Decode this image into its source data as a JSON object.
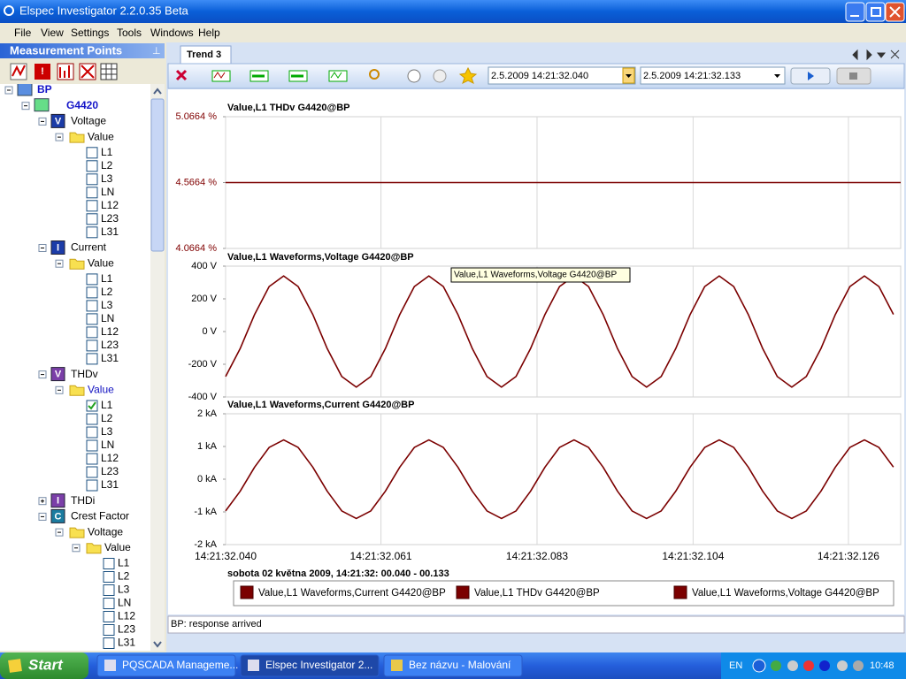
{
  "window": {
    "title": "Elspec Investigator 2.2.0.35 Beta"
  },
  "menu": [
    "File",
    "View",
    "Settings",
    "Tools",
    "Windows",
    "Help"
  ],
  "left_panel": {
    "title": "Measurement Points",
    "tree": [
      {
        "label": "BP",
        "depth": 0,
        "kind": "server",
        "expanded": true
      },
      {
        "label": "G4420",
        "depth": 1,
        "kind": "device",
        "expanded": true
      },
      {
        "label": "Voltage",
        "depth": 2,
        "kind": "measure",
        "icon": "V",
        "icon_color": "#1c3ca8",
        "expanded": true
      },
      {
        "label": "Value",
        "depth": 3,
        "kind": "folder",
        "expanded": true
      },
      {
        "label": "L1",
        "depth": 4,
        "kind": "channel",
        "checked": false
      },
      {
        "label": "L2",
        "depth": 4,
        "kind": "channel",
        "checked": false
      },
      {
        "label": "L3",
        "depth": 4,
        "kind": "channel",
        "checked": false
      },
      {
        "label": "LN",
        "depth": 4,
        "kind": "channel",
        "checked": false
      },
      {
        "label": "L12",
        "depth": 4,
        "kind": "channel",
        "checked": false
      },
      {
        "label": "L23",
        "depth": 4,
        "kind": "channel",
        "checked": false
      },
      {
        "label": "L31",
        "depth": 4,
        "kind": "channel",
        "checked": false
      },
      {
        "label": "Current",
        "depth": 2,
        "kind": "measure",
        "icon": "I",
        "icon_color": "#1c3ca8",
        "expanded": true
      },
      {
        "label": "Value",
        "depth": 3,
        "kind": "folder",
        "expanded": true
      },
      {
        "label": "L1",
        "depth": 4,
        "kind": "channel",
        "checked": false
      },
      {
        "label": "L2",
        "depth": 4,
        "kind": "channel",
        "checked": false
      },
      {
        "label": "L3",
        "depth": 4,
        "kind": "channel",
        "checked": false
      },
      {
        "label": "LN",
        "depth": 4,
        "kind": "channel",
        "checked": false
      },
      {
        "label": "L12",
        "depth": 4,
        "kind": "channel",
        "checked": false
      },
      {
        "label": "L23",
        "depth": 4,
        "kind": "channel",
        "checked": false
      },
      {
        "label": "L31",
        "depth": 4,
        "kind": "channel",
        "checked": false
      },
      {
        "label": "THDv",
        "depth": 2,
        "kind": "measure",
        "icon": "V",
        "icon_color": "#7b3fa8",
        "expanded": true
      },
      {
        "label": "Value",
        "depth": 3,
        "kind": "folder",
        "expanded": true,
        "selected": true
      },
      {
        "label": "L1",
        "depth": 4,
        "kind": "channel",
        "checked": true
      },
      {
        "label": "L2",
        "depth": 4,
        "kind": "channel",
        "checked": false
      },
      {
        "label": "L3",
        "depth": 4,
        "kind": "channel",
        "checked": false
      },
      {
        "label": "LN",
        "depth": 4,
        "kind": "channel",
        "checked": false
      },
      {
        "label": "L12",
        "depth": 4,
        "kind": "channel",
        "checked": false
      },
      {
        "label": "L23",
        "depth": 4,
        "kind": "channel",
        "checked": false
      },
      {
        "label": "L31",
        "depth": 4,
        "kind": "channel",
        "checked": false
      },
      {
        "label": "THDi",
        "depth": 2,
        "kind": "measure",
        "icon": "I",
        "icon_color": "#7b3fa8",
        "expanded": false
      },
      {
        "label": "Crest Factor",
        "depth": 2,
        "kind": "measure",
        "icon": "C",
        "icon_color": "#1b7ca0",
        "expanded": true
      },
      {
        "label": "Voltage",
        "depth": 3,
        "kind": "folder",
        "expanded": true
      },
      {
        "label": "Value",
        "depth": 4,
        "kind": "folder",
        "expanded": true
      },
      {
        "label": "L1",
        "depth": 5,
        "kind": "channel",
        "checked": false
      },
      {
        "label": "L2",
        "depth": 5,
        "kind": "channel",
        "checked": false
      },
      {
        "label": "L3",
        "depth": 5,
        "kind": "channel",
        "checked": false
      },
      {
        "label": "LN",
        "depth": 5,
        "kind": "channel",
        "checked": false
      },
      {
        "label": "L12",
        "depth": 5,
        "kind": "channel",
        "checked": false
      },
      {
        "label": "L23",
        "depth": 5,
        "kind": "channel",
        "checked": false
      },
      {
        "label": "L31",
        "depth": 5,
        "kind": "channel",
        "checked": false
      }
    ]
  },
  "tab": "Trend 3",
  "toolbar": {
    "start": "2.5.2009 14:21:32.040",
    "end": "2.5.2009 14:21:32.133"
  },
  "chart_data": [
    {
      "type": "line",
      "title": "Value,L1 THDv G4420@BP",
      "grid": true,
      "xlim": [
        32.04,
        32.133
      ],
      "xticks": [
        32.04,
        32.0614,
        32.0829,
        32.1044,
        32.1258
      ],
      "ylim": [
        4.0664,
        5.0664
      ],
      "yticks": [
        {
          "value": 5.0664,
          "label": "5.0664 %"
        },
        {
          "value": 4.5664,
          "label": "4.5664 %"
        },
        {
          "value": 4.0664,
          "label": "4.0664 %"
        }
      ],
      "x": [
        32.04,
        32.133
      ],
      "series": [
        {
          "name": "Value,L1 THDv G4420@BP",
          "color": "#7b0000",
          "values": [
            4.5664,
            4.5664
          ]
        }
      ]
    },
    {
      "type": "line",
      "title": "Value,L1 Waveforms,Voltage G4420@BP",
      "grid": true,
      "xlim": [
        32.04,
        32.133
      ],
      "xticks": [
        32.04,
        32.0614,
        32.0829,
        32.1044,
        32.1258
      ],
      "ylim": [
        -400,
        400
      ],
      "yticks": [
        {
          "value": 400,
          "label": "400 V"
        },
        {
          "value": 200,
          "label": "200 V"
        },
        {
          "value": 0,
          "label": "0 V"
        },
        {
          "value": -200,
          "label": "-200 V"
        },
        {
          "value": -400,
          "label": "-400 V"
        }
      ],
      "x": [
        32.04,
        32.042,
        32.044,
        32.046,
        32.048,
        32.05,
        32.052,
        32.054,
        32.056,
        32.058,
        32.06,
        32.062,
        32.064,
        32.066,
        32.068,
        32.07,
        32.072,
        32.074,
        32.076,
        32.078,
        32.08,
        32.082,
        32.084,
        32.086,
        32.088,
        32.09,
        32.092,
        32.094,
        32.096,
        32.098,
        32.1,
        32.102,
        32.104,
        32.106,
        32.108,
        32.11,
        32.112,
        32.114,
        32.116,
        32.118,
        32.12,
        32.122,
        32.124,
        32.126,
        32.128,
        32.13,
        32.132
      ],
      "series": [
        {
          "name": "Value,L1 Waveforms,Voltage G4420@BP",
          "color": "#7b0000",
          "values": [
            -275,
            -105,
            105,
            275,
            340,
            275,
            105,
            -105,
            -275,
            -340,
            -275,
            -105,
            105,
            275,
            340,
            275,
            105,
            -105,
            -275,
            -340,
            -275,
            -105,
            105,
            275,
            340,
            275,
            105,
            -105,
            -275,
            -340,
            -275,
            -105,
            105,
            275,
            340,
            275,
            105,
            -105,
            -275,
            -340,
            -275,
            -105,
            105,
            275,
            340,
            275,
            105
          ]
        }
      ]
    },
    {
      "type": "line",
      "title": "Value,L1 Waveforms,Current G4420@BP",
      "grid": true,
      "xlim": [
        32.04,
        32.133
      ],
      "xticks": [
        {
          "value": 32.04,
          "label": "14:21:32.040"
        },
        {
          "value": 32.0614,
          "label": "14:21:32.061"
        },
        {
          "value": 32.0829,
          "label": "14:21:32.083"
        },
        {
          "value": 32.1044,
          "label": "14:21:32.104"
        },
        {
          "value": 32.1258,
          "label": "14:21:32.126"
        }
      ],
      "ylim": [
        -2,
        2
      ],
      "yticks": [
        {
          "value": 2,
          "label": "2 kA"
        },
        {
          "value": 1,
          "label": "1 kA"
        },
        {
          "value": 0,
          "label": "0 kA"
        },
        {
          "value": -1,
          "label": "-1 kA"
        },
        {
          "value": -2,
          "label": "-2 kA"
        }
      ],
      "x": [
        32.04,
        32.042,
        32.044,
        32.046,
        32.048,
        32.05,
        32.052,
        32.054,
        32.056,
        32.058,
        32.06,
        32.062,
        32.064,
        32.066,
        32.068,
        32.07,
        32.072,
        32.074,
        32.076,
        32.078,
        32.08,
        32.082,
        32.084,
        32.086,
        32.088,
        32.09,
        32.092,
        32.094,
        32.096,
        32.098,
        32.1,
        32.102,
        32.104,
        32.106,
        32.108,
        32.11,
        32.112,
        32.114,
        32.116,
        32.118,
        32.12,
        32.122,
        32.124,
        32.126,
        32.128,
        32.13,
        32.132
      ],
      "series": [
        {
          "name": "Value,L1 Waveforms,Current G4420@BP",
          "color": "#7b0000",
          "values": [
            -0.97,
            -0.37,
            0.37,
            0.97,
            1.2,
            0.97,
            0.37,
            -0.37,
            -0.97,
            -1.2,
            -0.97,
            -0.37,
            0.37,
            0.97,
            1.2,
            0.97,
            0.37,
            -0.37,
            -0.97,
            -1.2,
            -0.97,
            -0.37,
            0.37,
            0.97,
            1.2,
            0.97,
            0.37,
            -0.37,
            -0.97,
            -1.2,
            -0.97,
            -0.37,
            0.37,
            0.97,
            1.2,
            0.97,
            0.37,
            -0.37,
            -0.97,
            -1.2,
            -0.97,
            -0.37,
            0.37,
            0.97,
            1.2,
            0.97,
            0.37
          ]
        }
      ]
    }
  ],
  "tooltip": "Value,L1 Waveforms,Voltage G4420@BP",
  "footer": "sobota 02 května 2009, 14:21:32: 00.040 - 00.133",
  "status": "BP: response arrived",
  "taskbar": {
    "start": "Start",
    "items": [
      "PQSCADA Manageme...",
      "Elspec Investigator 2...",
      "Bez názvu - Malování"
    ],
    "lang": "EN",
    "clock": "10:48"
  }
}
